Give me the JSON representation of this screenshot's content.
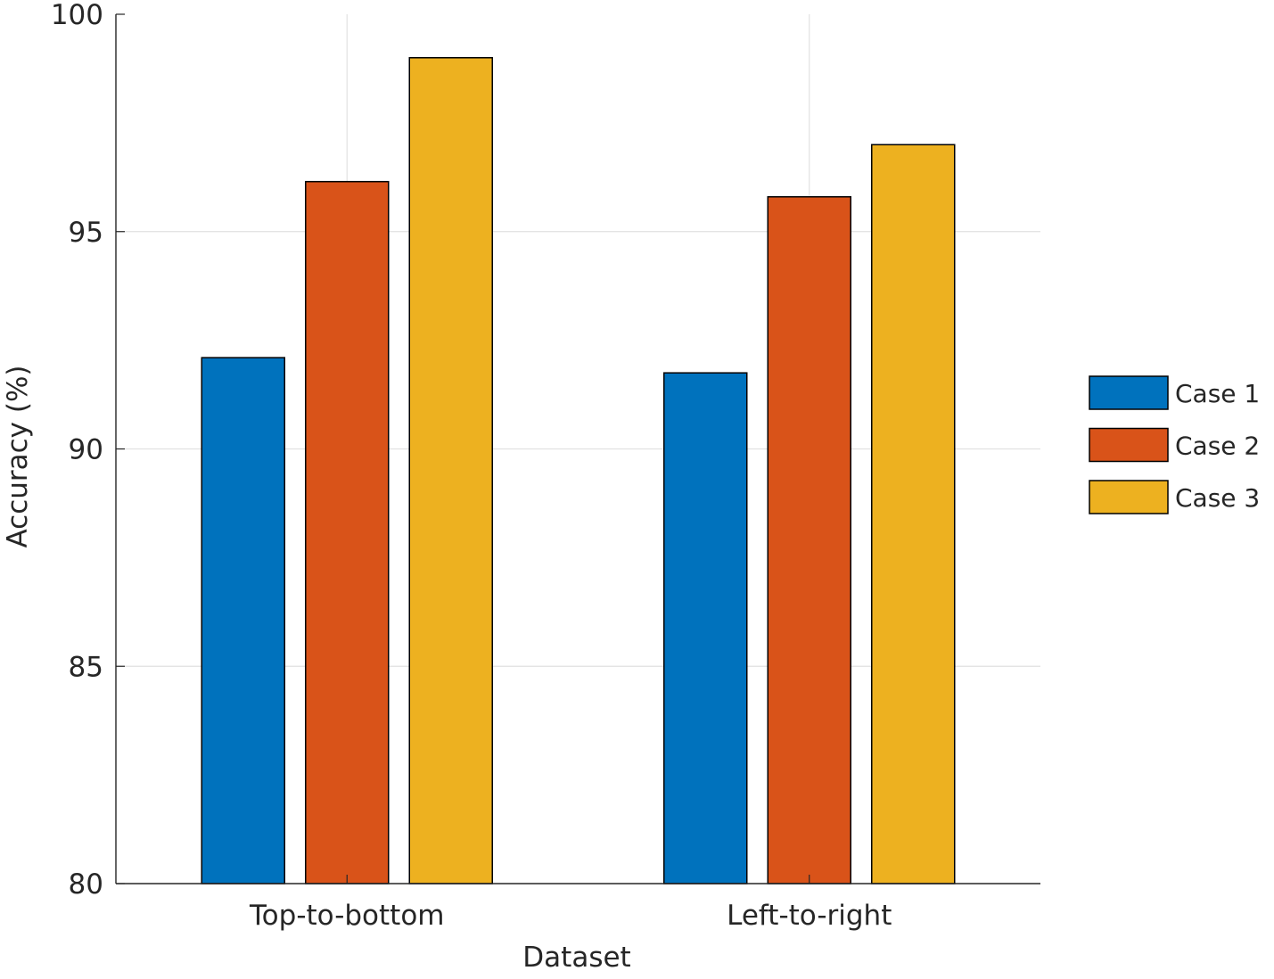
{
  "chart_data": {
    "type": "bar",
    "title": "",
    "xlabel": "Dataset",
    "ylabel": "Accuracy (%)",
    "categories": [
      "Top-to-bottom",
      "Left-to-right"
    ],
    "series": [
      {
        "name": "Case 1",
        "color": "#0072BD",
        "values": [
          92.1,
          91.75
        ]
      },
      {
        "name": "Case 2",
        "color": "#D95319",
        "values": [
          96.15,
          95.8
        ]
      },
      {
        "name": "Case 3",
        "color": "#EDB120",
        "values": [
          99.0,
          97.0
        ]
      }
    ],
    "ylim": [
      80,
      100
    ],
    "yticks": [
      "80",
      "85",
      "90",
      "95",
      "100"
    ],
    "grid": true,
    "legend_position": "right"
  }
}
